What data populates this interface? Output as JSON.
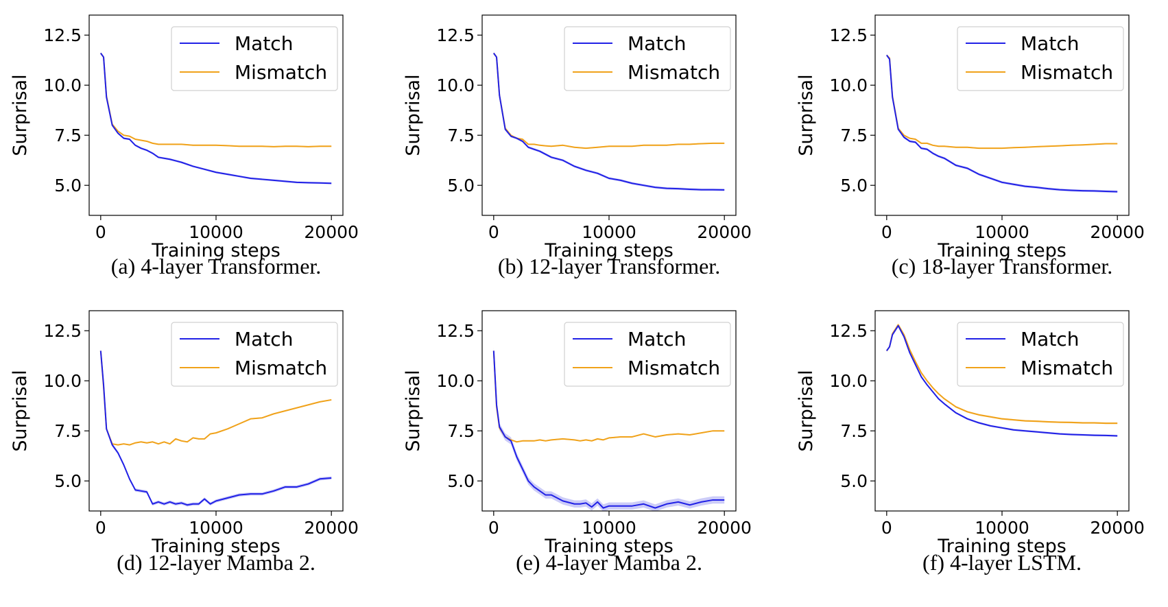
{
  "figure": {
    "colors": {
      "match": "#2020e6",
      "mismatch": "#f0a21a",
      "band_match": "#8f8fef"
    }
  },
  "chart_data": [
    {
      "type": "line",
      "caption": "(a) 4-layer Transformer.",
      "xlabel": "Training steps",
      "ylabel": "Surprisal",
      "xlim": [
        -1000,
        21000
      ],
      "ylim": [
        3.5,
        13.5
      ],
      "xticks": [
        0,
        10000,
        20000
      ],
      "xtick_labels": [
        "0",
        "10000",
        "20000"
      ],
      "yticks": [
        5.0,
        7.5,
        10.0,
        12.5
      ],
      "ytick_labels": [
        "5.0",
        "7.5",
        "10.0",
        "12.5"
      ],
      "legend_placement": "upper right",
      "series": [
        {
          "name": "Match",
          "color": "#2020e6",
          "band": 0.05,
          "x": [
            0,
            250,
            500,
            1000,
            1500,
            2000,
            2500,
            3000,
            3500,
            4000,
            4500,
            5000,
            6000,
            7000,
            8000,
            9000,
            10000,
            11000,
            12000,
            13000,
            14000,
            15000,
            16000,
            17000,
            18000,
            19000,
            20000
          ],
          "y": [
            11.6,
            11.4,
            9.4,
            8.0,
            7.6,
            7.35,
            7.3,
            7.0,
            6.85,
            6.75,
            6.6,
            6.4,
            6.3,
            6.15,
            5.95,
            5.8,
            5.65,
            5.55,
            5.45,
            5.35,
            5.3,
            5.25,
            5.2,
            5.15,
            5.13,
            5.12,
            5.1
          ]
        },
        {
          "name": "Mismatch",
          "color": "#f0a21a",
          "band": 0.03,
          "x": [
            0,
            250,
            500,
            1000,
            1500,
            2000,
            2500,
            3000,
            3500,
            4000,
            4500,
            5000,
            6000,
            7000,
            8000,
            9000,
            10000,
            11000,
            12000,
            13000,
            14000,
            15000,
            16000,
            17000,
            18000,
            19000,
            20000
          ],
          "y": [
            11.6,
            11.4,
            9.45,
            8.05,
            7.7,
            7.5,
            7.45,
            7.3,
            7.25,
            7.2,
            7.1,
            7.05,
            7.05,
            7.05,
            7.0,
            7.0,
            7.0,
            6.98,
            6.95,
            6.95,
            6.95,
            6.93,
            6.95,
            6.95,
            6.93,
            6.95,
            6.95
          ]
        }
      ]
    },
    {
      "type": "line",
      "caption": "(b) 12-layer Transformer.",
      "xlabel": "Training steps",
      "ylabel": "Surprisal",
      "xlim": [
        -1000,
        21000
      ],
      "ylim": [
        3.5,
        13.5
      ],
      "xticks": [
        0,
        10000,
        20000
      ],
      "xtick_labels": [
        "0",
        "10000",
        "20000"
      ],
      "yticks": [
        5.0,
        7.5,
        10.0,
        12.5
      ],
      "ytick_labels": [
        "5.0",
        "7.5",
        "10.0",
        "12.5"
      ],
      "legend_placement": "upper right",
      "series": [
        {
          "name": "Match",
          "color": "#2020e6",
          "band": 0.06,
          "x": [
            0,
            250,
            500,
            1000,
            1500,
            2000,
            2500,
            3000,
            3500,
            4000,
            4500,
            5000,
            6000,
            7000,
            8000,
            9000,
            10000,
            11000,
            12000,
            13000,
            14000,
            15000,
            16000,
            17000,
            18000,
            19000,
            20000
          ],
          "y": [
            11.6,
            11.4,
            9.5,
            7.8,
            7.45,
            7.35,
            7.2,
            6.9,
            6.8,
            6.7,
            6.55,
            6.4,
            6.25,
            5.95,
            5.75,
            5.6,
            5.35,
            5.25,
            5.1,
            5.0,
            4.9,
            4.85,
            4.83,
            4.8,
            4.78,
            4.78,
            4.77
          ]
        },
        {
          "name": "Mismatch",
          "color": "#f0a21a",
          "band": 0.03,
          "x": [
            0,
            250,
            500,
            1000,
            1500,
            2000,
            2500,
            3000,
            3500,
            4000,
            4500,
            5000,
            6000,
            7000,
            8000,
            9000,
            10000,
            11000,
            12000,
            13000,
            14000,
            15000,
            16000,
            17000,
            18000,
            19000,
            20000
          ],
          "y": [
            11.6,
            11.4,
            9.5,
            7.85,
            7.5,
            7.35,
            7.3,
            7.05,
            7.05,
            7.0,
            6.97,
            6.95,
            7.0,
            6.9,
            6.85,
            6.9,
            6.95,
            6.95,
            6.95,
            7.0,
            7.0,
            7.0,
            7.05,
            7.05,
            7.08,
            7.1,
            7.1
          ]
        }
      ]
    },
    {
      "type": "line",
      "caption": "(c) 18-layer Transformer.",
      "xlabel": "Training steps",
      "ylabel": "Surprisal",
      "xlim": [
        -1000,
        21000
      ],
      "ylim": [
        3.5,
        13.5
      ],
      "xticks": [
        0,
        10000,
        20000
      ],
      "xtick_labels": [
        "0",
        "10000",
        "20000"
      ],
      "yticks": [
        5.0,
        7.5,
        10.0,
        12.5
      ],
      "ytick_labels": [
        "5.0",
        "7.5",
        "10.0",
        "12.5"
      ],
      "legend_placement": "upper right",
      "series": [
        {
          "name": "Match",
          "color": "#2020e6",
          "band": 0.06,
          "x": [
            0,
            250,
            500,
            1000,
            1500,
            2000,
            2500,
            3000,
            3500,
            4000,
            4500,
            5000,
            6000,
            7000,
            8000,
            9000,
            10000,
            11000,
            12000,
            13000,
            14000,
            15000,
            16000,
            17000,
            18000,
            19000,
            20000
          ],
          "y": [
            11.5,
            11.3,
            9.4,
            7.8,
            7.4,
            7.2,
            7.15,
            6.85,
            6.8,
            6.6,
            6.45,
            6.35,
            6.0,
            5.85,
            5.55,
            5.35,
            5.15,
            5.05,
            4.95,
            4.9,
            4.83,
            4.78,
            4.75,
            4.73,
            4.72,
            4.7,
            4.68
          ]
        },
        {
          "name": "Mismatch",
          "color": "#f0a21a",
          "band": 0.03,
          "x": [
            0,
            250,
            500,
            1000,
            1500,
            2000,
            2500,
            3000,
            3500,
            4000,
            4500,
            5000,
            6000,
            7000,
            8000,
            9000,
            10000,
            11000,
            12000,
            13000,
            14000,
            15000,
            16000,
            17000,
            18000,
            19000,
            20000
          ],
          "y": [
            11.5,
            11.35,
            9.45,
            7.85,
            7.5,
            7.35,
            7.3,
            7.1,
            7.1,
            7.0,
            6.95,
            6.95,
            6.9,
            6.9,
            6.85,
            6.85,
            6.85,
            6.88,
            6.9,
            6.93,
            6.95,
            6.97,
            7.0,
            7.02,
            7.05,
            7.08,
            7.08
          ]
        }
      ]
    },
    {
      "type": "line",
      "caption": "(d) 12-layer Mamba 2.",
      "xlabel": "Training steps",
      "ylabel": "Surprisal",
      "xlim": [
        -1000,
        21000
      ],
      "ylim": [
        3.5,
        13.5
      ],
      "xticks": [
        0,
        10000,
        20000
      ],
      "xtick_labels": [
        "0",
        "10000",
        "20000"
      ],
      "yticks": [
        5.0,
        7.5,
        10.0,
        12.5
      ],
      "ytick_labels": [
        "5.0",
        "7.5",
        "10.0",
        "12.5"
      ],
      "legend_placement": "upper right",
      "series": [
        {
          "name": "Match",
          "color": "#2020e6",
          "band": 0.08,
          "x": [
            0,
            250,
            500,
            1000,
            1500,
            2000,
            2500,
            3000,
            3500,
            4000,
            4500,
            5000,
            5500,
            6000,
            6500,
            7000,
            7500,
            8000,
            8500,
            9000,
            9500,
            10000,
            11000,
            12000,
            13000,
            14000,
            15000,
            16000,
            17000,
            18000,
            19000,
            20000
          ],
          "y": [
            11.5,
            9.8,
            7.6,
            6.8,
            6.4,
            5.8,
            5.1,
            4.55,
            4.5,
            4.45,
            3.85,
            3.95,
            3.85,
            3.95,
            3.85,
            3.9,
            3.8,
            3.85,
            3.85,
            4.1,
            3.85,
            4.0,
            4.15,
            4.3,
            4.35,
            4.35,
            4.5,
            4.7,
            4.7,
            4.85,
            5.1,
            5.15
          ]
        },
        {
          "name": "Mismatch",
          "color": "#f0a21a",
          "band": 0.03,
          "x": [
            0,
            250,
            500,
            1000,
            1500,
            2000,
            2500,
            3000,
            3500,
            4000,
            4500,
            5000,
            5500,
            6000,
            6500,
            7000,
            7500,
            8000,
            8500,
            9000,
            9500,
            10000,
            11000,
            12000,
            13000,
            14000,
            15000,
            16000,
            17000,
            18000,
            19000,
            20000
          ],
          "y": [
            11.5,
            9.7,
            7.6,
            6.85,
            6.8,
            6.85,
            6.8,
            6.9,
            6.95,
            6.9,
            6.95,
            6.85,
            6.95,
            6.85,
            7.1,
            7.0,
            6.95,
            7.15,
            7.1,
            7.1,
            7.35,
            7.4,
            7.6,
            7.85,
            8.1,
            8.15,
            8.35,
            8.5,
            8.65,
            8.8,
            8.95,
            9.05
          ]
        }
      ]
    },
    {
      "type": "line",
      "caption": "(e) 4-layer Mamba 2.",
      "xlabel": "Training steps",
      "ylabel": "Surprisal",
      "xlim": [
        -1000,
        21000
      ],
      "ylim": [
        3.5,
        13.5
      ],
      "xticks": [
        0,
        10000,
        20000
      ],
      "xtick_labels": [
        "0",
        "10000",
        "20000"
      ],
      "yticks": [
        5.0,
        7.5,
        10.0,
        12.5
      ],
      "ytick_labels": [
        "5.0",
        "7.5",
        "10.0",
        "12.5"
      ],
      "legend_placement": "upper right",
      "series": [
        {
          "name": "Match",
          "color": "#2020e6",
          "band": 0.18,
          "x": [
            0,
            250,
            500,
            1000,
            1500,
            2000,
            2500,
            3000,
            3500,
            4000,
            4500,
            5000,
            6000,
            7000,
            7500,
            8000,
            8500,
            9000,
            9500,
            10000,
            11000,
            12000,
            13000,
            14000,
            15000,
            16000,
            17000,
            18000,
            19000,
            20000
          ],
          "y": [
            11.5,
            8.8,
            7.7,
            7.2,
            7.0,
            6.2,
            5.6,
            5.0,
            4.7,
            4.5,
            4.3,
            4.3,
            4.0,
            3.85,
            3.85,
            3.9,
            3.7,
            3.95,
            3.65,
            3.75,
            3.75,
            3.75,
            3.85,
            3.65,
            3.85,
            3.95,
            3.8,
            3.95,
            4.05,
            4.05
          ]
        },
        {
          "name": "Mismatch",
          "color": "#f0a21a",
          "band": 0.03,
          "x": [
            0,
            250,
            500,
            1000,
            1500,
            2000,
            2500,
            3000,
            3500,
            4000,
            4500,
            5000,
            6000,
            7000,
            7500,
            8000,
            8500,
            9000,
            9500,
            10000,
            11000,
            12000,
            13000,
            14000,
            15000,
            16000,
            17000,
            18000,
            19000,
            20000
          ],
          "y": [
            11.5,
            8.7,
            7.65,
            7.2,
            7.05,
            6.95,
            7.0,
            7.0,
            7.0,
            7.05,
            7.0,
            7.05,
            7.1,
            7.05,
            7.0,
            7.05,
            7.0,
            7.1,
            7.05,
            7.15,
            7.2,
            7.2,
            7.35,
            7.2,
            7.3,
            7.35,
            7.3,
            7.4,
            7.5,
            7.5
          ]
        }
      ]
    },
    {
      "type": "line",
      "caption": "(f) 4-layer LSTM.",
      "xlabel": "Training steps",
      "ylabel": "Surprisal",
      "xlim": [
        -1000,
        21000
      ],
      "ylim": [
        3.5,
        13.5
      ],
      "xticks": [
        0,
        10000,
        20000
      ],
      "xtick_labels": [
        "0",
        "10000",
        "20000"
      ],
      "yticks": [
        5.0,
        7.5,
        10.0,
        12.5
      ],
      "ytick_labels": [
        "5.0",
        "7.5",
        "10.0",
        "12.5"
      ],
      "legend_placement": "upper right",
      "series": [
        {
          "name": "Match",
          "color": "#2020e6",
          "band": 0.05,
          "x": [
            0,
            250,
            500,
            1000,
            1500,
            2000,
            2500,
            3000,
            3500,
            4000,
            4500,
            5000,
            6000,
            7000,
            8000,
            9000,
            10000,
            11000,
            12000,
            13000,
            14000,
            15000,
            16000,
            17000,
            18000,
            19000,
            20000
          ],
          "y": [
            11.5,
            11.7,
            12.3,
            12.75,
            12.2,
            11.4,
            10.8,
            10.2,
            9.8,
            9.45,
            9.1,
            8.85,
            8.4,
            8.1,
            7.9,
            7.75,
            7.65,
            7.55,
            7.5,
            7.45,
            7.4,
            7.35,
            7.32,
            7.3,
            7.28,
            7.27,
            7.25
          ]
        },
        {
          "name": "Mismatch",
          "color": "#f0a21a",
          "band": 0.04,
          "x": [
            0,
            250,
            500,
            1000,
            1500,
            2000,
            2500,
            3000,
            3500,
            4000,
            4500,
            5000,
            6000,
            7000,
            8000,
            9000,
            10000,
            11000,
            12000,
            13000,
            14000,
            15000,
            16000,
            17000,
            18000,
            19000,
            20000
          ],
          "y": [
            11.5,
            11.7,
            12.35,
            12.8,
            12.3,
            11.55,
            10.95,
            10.4,
            10.0,
            9.65,
            9.35,
            9.1,
            8.7,
            8.45,
            8.3,
            8.2,
            8.1,
            8.05,
            8.0,
            7.98,
            7.95,
            7.93,
            7.92,
            7.9,
            7.9,
            7.88,
            7.88
          ]
        }
      ]
    }
  ]
}
